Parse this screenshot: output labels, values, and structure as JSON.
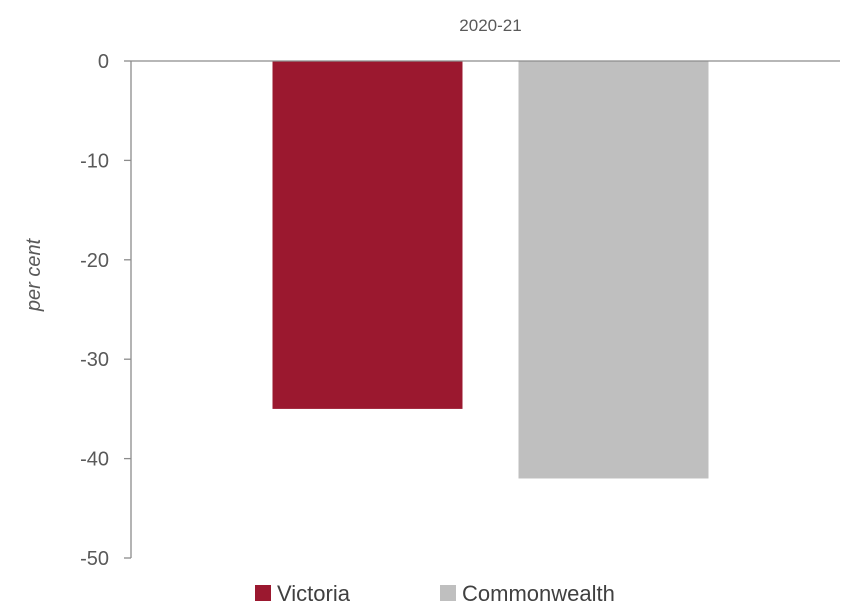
{
  "chart_data": {
    "type": "bar",
    "categories": [
      "2020-21"
    ],
    "series": [
      {
        "name": "Victoria",
        "values": [
          -35
        ],
        "color": "#9b182f"
      },
      {
        "name": "Commonwealth",
        "values": [
          -42
        ],
        "color": "#bfbfbf"
      }
    ],
    "ylabel": "per cent",
    "ylim": [
      -50,
      0
    ],
    "yticks": [
      0,
      -10,
      -20,
      -30,
      -40,
      -50
    ],
    "category_axis_position": "top",
    "legend_position": "bottom",
    "grid": false
  }
}
